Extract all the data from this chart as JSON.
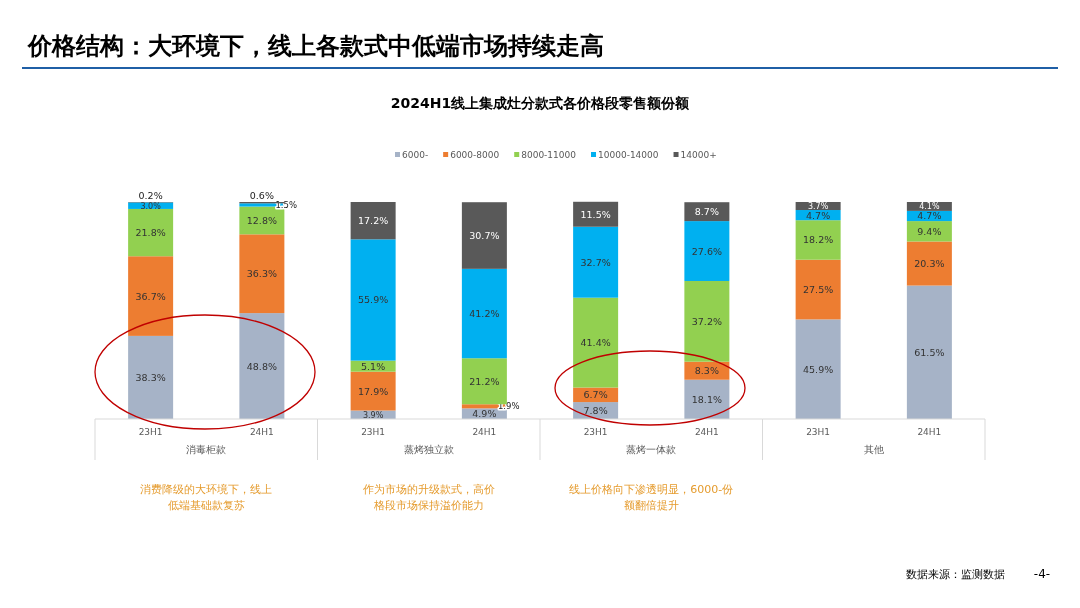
{
  "chart_data": [
    {
      "type": "other",
      "title": "价格结构：大环境下，线上各款式中低端市场持续走高",
      "subtitle": "2024H1线上集成灶分款式各价格段零售额份额"
    },
    {
      "type": "bar",
      "stacked": true,
      "xlabel": "消毒柜款",
      "categories": [
        "23H1",
        "24H1"
      ],
      "ylim": [
        0,
        100
      ],
      "legend": "top",
      "annotations": [
        "消费降级的大环境下，线上低端基础款复苏"
      ],
      "series": [
        {
          "name": "6000-",
          "color": "#a6b3c7",
          "values": [
            38.3,
            48.8
          ],
          "value_labels": [
            "38.3%",
            "48.8%"
          ]
        },
        {
          "name": "6000-8000",
          "color": "#ed7d31",
          "values": [
            36.7,
            36.3
          ],
          "value_labels": [
            "36.7%",
            "36.3%"
          ]
        },
        {
          "name": "8000-11000",
          "color": "#92d050",
          "values": [
            21.8,
            12.8
          ],
          "value_labels": [
            "21.8%",
            "12.8%"
          ]
        },
        {
          "name": "10000-14000",
          "color": "#00b0f0",
          "values": [
            3.0,
            1.5
          ],
          "value_labels": [
            "3.0%",
            "1.5%"
          ]
        },
        {
          "name": "14000+",
          "color": "#595959",
          "values": [
            0.2,
            0.6
          ],
          "value_labels": [
            "0.2%",
            "0.6%"
          ]
        }
      ]
    },
    {
      "type": "bar",
      "stacked": true,
      "xlabel": "蒸烤独立款",
      "categories": [
        "23H1",
        "24H1"
      ],
      "ylim": [
        0,
        100
      ],
      "annotations": [
        "作为市场的升级款式，高价格段市场保持溢价能力"
      ],
      "series": [
        {
          "color": "#a6b3c7",
          "values": [
            3.9,
            4.9
          ],
          "value_labels": [
            "3.9%",
            "4.9%"
          ]
        },
        {
          "color": "#ed7d31",
          "values": [
            17.9,
            1.9
          ],
          "value_labels": [
            "17.9%",
            "1.9%"
          ]
        },
        {
          "color": "#92d050",
          "values": [
            5.1,
            21.2
          ],
          "value_labels": [
            "5.1%",
            "21.2%"
          ]
        },
        {
          "color": "#00b0f0",
          "values": [
            55.9,
            41.2
          ],
          "value_labels": [
            "55.9%",
            "41.2%"
          ]
        },
        {
          "color": "#595959",
          "values": [
            17.2,
            30.7
          ],
          "value_labels": [
            "17.2%",
            "30.7%"
          ]
        }
      ]
    },
    {
      "type": "bar",
      "stacked": true,
      "xlabel": "蒸烤一体款",
      "categories": [
        "23H1",
        "24H1"
      ],
      "ylim": [
        0,
        100
      ],
      "annotations": [
        "线上价格向下渗透明显，6000-份额翻倍提升"
      ],
      "series": [
        {
          "color": "#a6b3c7",
          "values": [
            7.8,
            18.1
          ],
          "value_labels": [
            "7.8%",
            "18.1%"
          ]
        },
        {
          "color": "#ed7d31",
          "values": [
            6.7,
            8.3
          ],
          "value_labels": [
            "6.7%",
            "8.3%"
          ]
        },
        {
          "color": "#92d050",
          "values": [
            41.4,
            37.2
          ],
          "value_labels": [
            "41.4%",
            "37.2%"
          ]
        },
        {
          "color": "#00b0f0",
          "values": [
            32.7,
            27.6
          ],
          "value_labels": [
            "32.7%",
            "27.6%"
          ]
        },
        {
          "color": "#595959",
          "values": [
            11.5,
            8.7
          ],
          "value_labels": [
            "11.5%",
            "8.7%"
          ]
        }
      ]
    },
    {
      "type": "bar",
      "stacked": true,
      "xlabel": "其他",
      "categories": [
        "23H1",
        "24H1"
      ],
      "ylim": [
        0,
        100
      ],
      "annotations": [
        "数据来源：监测数据",
        "-4-"
      ],
      "series": [
        {
          "color": "#a6b3c7",
          "values": [
            45.9,
            61.5
          ],
          "value_labels": [
            "45.9%",
            "61.5%"
          ]
        },
        {
          "color": "#ed7d31",
          "values": [
            27.5,
            20.3
          ],
          "value_labels": [
            "27.5%",
            "20.3%"
          ]
        },
        {
          "color": "#92d050",
          "values": [
            18.2,
            9.4
          ],
          "value_labels": [
            "18.2%",
            "9.4%"
          ]
        },
        {
          "color": "#00b0f0",
          "values": [
            4.7,
            4.7
          ],
          "value_labels": [
            "4.7%",
            "4.7%"
          ]
        },
        {
          "color": "#595959",
          "values": [
            3.7,
            4.1
          ],
          "value_labels": [
            "3.7%",
            "4.1%"
          ]
        }
      ]
    }
  ]
}
